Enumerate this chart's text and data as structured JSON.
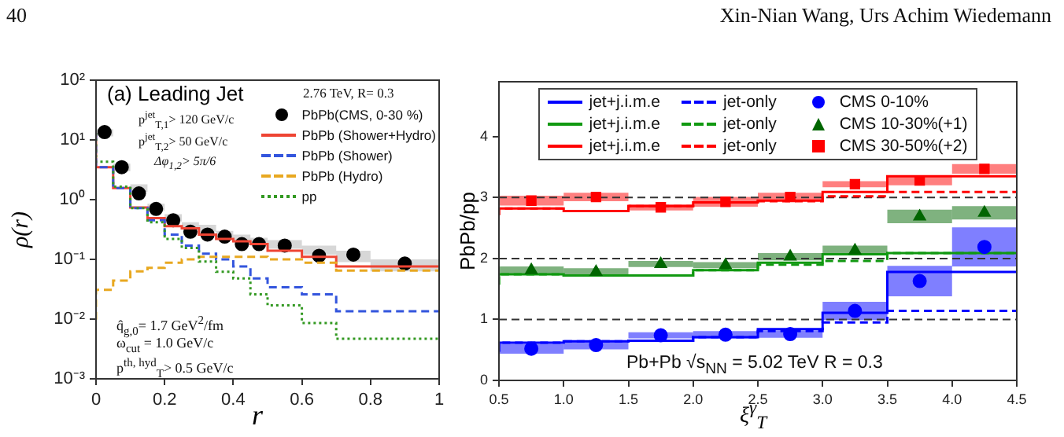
{
  "chart_data": [
    {
      "type": "step",
      "title": "(a) Leading Jet",
      "legend_title": "2.76 TeV, R= 0.3",
      "xlabel": "r",
      "ylabel": "ρ(r)",
      "annotations": [
        "40",
        "Xin-Nian Wang, Urs Achim Wiedemann",
        "p$^{jet}$$_{T,1}$> 120 GeV/c",
        "p$^{jet}$$_{T,2}$> 50 GeV/c",
        "Δφ$_{1,2}$> 5π/6",
        "q̂$_{g,0}$= 1.7 GeV$^{2}$/fm",
        "ω$_{cut}$ = 1.0 GeV/c",
        "p$^{th, hyd}$$_{T}$> 0.5 GeV/c"
      ],
      "x": [
        0,
        0.05,
        0.1,
        0.15,
        0.2,
        0.25,
        0.3,
        0.35,
        0.4,
        0.45,
        0.5,
        0.6,
        0.7,
        0.8,
        1
      ],
      "series": [
        {
          "name": "PbPb(CMS, 0-30 %)",
          "type": "scatter",
          "marker": "circle",
          "color": "#000000",
          "x": [
            0.025,
            0.075,
            0.125,
            0.175,
            0.225,
            0.275,
            0.325,
            0.375,
            0.425,
            0.475,
            0.55,
            0.65,
            0.75,
            0.9
          ],
          "values": [
            13.5,
            3.5,
            1.27,
            0.7,
            0.45,
            0.29,
            0.26,
            0.24,
            0.18,
            0.18,
            0.17,
            0.115,
            0.12,
            0.085
          ]
        },
        {
          "name": "PbPb (Shower+Hydro)",
          "color": "#ee4433",
          "line_style": "solid",
          "values": [
            13,
            3.5,
            1.56,
            0.74,
            0.49,
            0.36,
            0.33,
            0.26,
            0.22,
            0.2,
            0.18,
            0.14,
            0.11,
            0.076,
            0.076
          ],
          "lower": [
            11.5,
            3.0,
            1.35,
            0.65,
            0.43,
            0.32,
            0.29,
            0.23,
            0.19,
            0.17,
            0.15,
            0.12,
            0.09,
            0.063,
            0.063
          ],
          "upper": [
            15,
            4.0,
            1.8,
            0.85,
            0.57,
            0.42,
            0.38,
            0.3,
            0.26,
            0.23,
            0.21,
            0.17,
            0.14,
            0.1,
            0.1
          ]
        },
        {
          "name": "PbPb (Shower)",
          "color": "#3355dd",
          "line_style": "dashed",
          "values": [
            13,
            3.5,
            1.56,
            0.72,
            0.45,
            0.26,
            0.17,
            0.125,
            0.1,
            0.076,
            0.048,
            0.034,
            0.026,
            0.0135,
            0.0135
          ]
        },
        {
          "name": "PbPb (Hydro)",
          "color": "#e8a820",
          "line_style": "dashed",
          "values": [
            0.0098,
            0.031,
            0.044,
            0.063,
            0.072,
            0.088,
            0.1,
            0.11,
            0.11,
            0.11,
            0.11,
            0.1,
            0.088,
            0.065,
            0.065
          ]
        },
        {
          "name": "pp",
          "color": "#339922",
          "line_style": "dotted",
          "values": [
            13,
            4.3,
            1.65,
            0.72,
            0.42,
            0.22,
            0.155,
            0.092,
            0.062,
            0.048,
            0.026,
            0.017,
            0.0086,
            0.0047,
            0.0047
          ]
        }
      ],
      "log": "y",
      "xlim": [
        0,
        1
      ],
      "xticks": [
        0,
        0.2,
        0.4,
        0.6,
        0.8,
        1
      ],
      "ylim": [
        0.001,
        100
      ],
      "yticks": [
        {
          "value": 0.001,
          "label": "10⁻³"
        },
        {
          "value": 0.01,
          "label": "10⁻²"
        },
        {
          "value": 0.1,
          "label": "10⁻¹"
        },
        {
          "value": 1,
          "label": "10⁰"
        },
        {
          "value": 10,
          "label": "10¹"
        },
        {
          "value": 100,
          "label": "10²"
        }
      ],
      "grid": false,
      "legend": "top right"
    },
    {
      "type": "step",
      "xlabel": "ξ$^{γ}$$_{T}$",
      "ylabel": "PbPb/pp",
      "annotations": [
        "Pb+Pb √s$_{NN}$ = 5.02 TeV   R = 0.3"
      ],
      "x": [
        0.5,
        1,
        1.5,
        2,
        2.5,
        3,
        3.5,
        4,
        4.5
      ],
      "series": [
        {
          "name": "jet+j.i.m.e",
          "color": "#0000ff",
          "line_style": "solid",
          "values": [
            0.47,
            0.62,
            0.64,
            0.65,
            0.71,
            0.84,
            1.11,
            1.78,
            1.78
          ]
        },
        {
          "name": "jet+j.i.m.e",
          "color": "#119911",
          "line_style": "solid",
          "values": [
            1.57,
            1.74,
            1.72,
            1.72,
            1.81,
            1.93,
            2.07,
            2.09,
            2.09
          ]
        },
        {
          "name": "jet+j.i.m.e",
          "color": "#ff0000",
          "line_style": "solid",
          "values": [
            2.71,
            2.82,
            2.78,
            2.86,
            2.92,
            2.95,
            3.09,
            3.35,
            3.35
          ]
        },
        {
          "name": "jet-only",
          "color": "#0000ff",
          "line_style": "dashed",
          "values": [
            0.47,
            0.62,
            0.64,
            0.65,
            0.71,
            0.81,
            0.95,
            1.14,
            1.14
          ]
        },
        {
          "name": "jet-only",
          "color": "#119911",
          "line_style": "dashed",
          "values": [
            1.57,
            1.74,
            1.72,
            1.72,
            1.81,
            1.9,
            1.96,
            2.09,
            2.09
          ]
        },
        {
          "name": "jet-only",
          "color": "#ff0000",
          "line_style": "dashed",
          "values": [
            2.71,
            2.82,
            2.78,
            2.86,
            2.92,
            2.94,
            3.02,
            3.09,
            3.09
          ]
        },
        {
          "name": "CMS 0-10%",
          "type": "scatter",
          "marker": "circle",
          "color": "#0000ff",
          "x": [
            0.75,
            1.25,
            1.75,
            2.25,
            2.75,
            3.25,
            3.75,
            4.25
          ],
          "values": [
            0.52,
            0.58,
            0.74,
            0.75,
            0.76,
            1.14,
            1.63,
            2.19
          ],
          "errors": [
            0.08,
            0.07,
            0.05,
            0.06,
            0.06,
            0.15,
            0.25,
            0.32
          ]
        },
        {
          "name": "CMS 10-30%(+1)",
          "type": "scatter",
          "marker": "triangle",
          "color": "#006600",
          "x": [
            0.75,
            1.25,
            1.75,
            2.25,
            2.75,
            3.25,
            3.75,
            4.25
          ],
          "values": [
            1.81,
            1.78,
            1.91,
            1.89,
            2.03,
            2.13,
            2.69,
            2.75
          ],
          "errors": [
            0.06,
            0.06,
            0.05,
            0.05,
            0.06,
            0.08,
            0.11,
            0.11
          ]
        },
        {
          "name": "CMS 30-50%(+2)",
          "type": "scatter",
          "marker": "square",
          "color": "#ff0000",
          "x": [
            0.75,
            1.25,
            1.75,
            2.25,
            2.75,
            3.25,
            3.75,
            4.25
          ],
          "values": [
            2.95,
            3.01,
            2.84,
            2.93,
            3.01,
            3.22,
            3.28,
            3.47
          ],
          "errors": [
            0.08,
            0.07,
            0.05,
            0.08,
            0.07,
            0.05,
            0.08,
            0.08
          ]
        }
      ],
      "ref_lines": [
        {
          "axis": "y",
          "value": 1,
          "color": "#333333",
          "line_style": "dashed"
        },
        {
          "axis": "y",
          "value": 2,
          "color": "#333333",
          "line_style": "dashed"
        },
        {
          "axis": "y",
          "value": 3,
          "color": "#333333",
          "line_style": "dashed"
        }
      ],
      "xlim": [
        0.5,
        4.5
      ],
      "xticks": [
        0.5,
        {
          "value": 1,
          "label": "1.0"
        },
        1.5,
        {
          "value": 2,
          "label": "2.0"
        },
        2.5,
        {
          "value": 3,
          "label": "3.0"
        },
        3.5,
        {
          "value": 4,
          "label": "4.0"
        },
        4.5
      ],
      "ylim": [
        0,
        4.9
      ],
      "yticks": [
        0,
        1,
        2,
        3,
        4
      ],
      "grid": false,
      "legend": "top"
    }
  ]
}
